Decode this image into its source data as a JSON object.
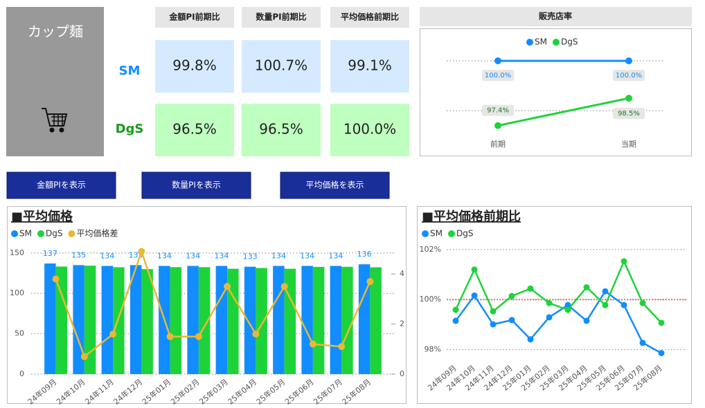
{
  "header": {
    "title": "カップ麺"
  },
  "kpi_table": {
    "columns": [
      "金額PI前期比",
      "数量PI前期比",
      "平均価格前期比"
    ],
    "rows": [
      {
        "label": "SM",
        "values": [
          "99.8%",
          "100.7%",
          "99.1%"
        ]
      },
      {
        "label": "DgS",
        "values": [
          "96.5%",
          "96.5%",
          "100.0%"
        ]
      }
    ]
  },
  "buttons": [
    "金額PIを表示",
    "数量PIを表示",
    "平均価格を表示"
  ],
  "chart_data": [
    {
      "type": "line",
      "title": "販売店率",
      "categories": [
        "前期",
        "当期"
      ],
      "series": [
        {
          "name": "SM",
          "color": "#118dff",
          "values": [
            100.0,
            100.0
          ],
          "value_labels": [
            "100.0%",
            "100.0%"
          ]
        },
        {
          "name": "DgS",
          "color": "#1ed33a",
          "values": [
            97.4,
            98.5
          ],
          "value_labels": [
            "97.4%",
            "98.5%"
          ]
        }
      ],
      "ylim": [
        97,
        100.5
      ],
      "gridlines": [
        98,
        100
      ],
      "legend": "top"
    },
    {
      "type": "combo",
      "title": "■平均価格",
      "categories": [
        "24年09月",
        "24年10月",
        "24年11月",
        "24年12月",
        "25年01月",
        "25年02月",
        "25年03月",
        "25年04月",
        "25年05月",
        "25年06月",
        "25年07月",
        "25年08月"
      ],
      "series": [
        {
          "name": "SM",
          "kind": "bar",
          "color": "#118dff",
          "data_labels": true,
          "values": [
            137,
            135,
            134,
            135,
            134,
            134,
            134,
            133,
            134,
            134,
            134,
            136
          ]
        },
        {
          "name": "DgS",
          "kind": "bar",
          "color": "#1ed33a",
          "values": [
            133.2,
            134.3,
            132.4,
            130.1,
            132.5,
            132.5,
            130.5,
            131.4,
            130.5,
            132.8,
            132.9,
            132.3
          ]
        },
        {
          "name": "平均価格差",
          "kind": "line",
          "axis": "y2",
          "color": "#e6b935",
          "values": [
            3.8,
            0.7,
            1.6,
            4.9,
            1.5,
            1.5,
            3.5,
            1.6,
            3.5,
            1.2,
            1.1,
            3.7
          ]
        }
      ],
      "ylim": [
        0,
        155
      ],
      "yticks": [
        0,
        50,
        100,
        150
      ],
      "y2lim": [
        0,
        5
      ],
      "y2ticks": [
        0,
        2,
        4
      ],
      "grid": true,
      "legend": "top-left"
    },
    {
      "type": "line",
      "title": "■平均価格前期比",
      "categories": [
        "24年09月",
        "24年10月",
        "24年11月",
        "24年12月",
        "25年01月",
        "25年02月",
        "25年03月",
        "25年04月",
        "25年05月",
        "25年06月",
        "25年07月",
        "25年08月"
      ],
      "series": [
        {
          "name": "SM",
          "color": "#118dff",
          "values": [
            99.15,
            100.16,
            99.01,
            99.18,
            98.41,
            99.29,
            99.78,
            99.15,
            100.33,
            99.78,
            98.27,
            97.86
          ]
        },
        {
          "name": "DgS",
          "color": "#1ed33a",
          "values": [
            99.59,
            101.2,
            99.53,
            100.14,
            100.44,
            99.86,
            99.59,
            100.49,
            99.78,
            101.53,
            99.86,
            99.07
          ]
        }
      ],
      "ylim": [
        97.6,
        102.3
      ],
      "yticks": [
        {
          "value": 98,
          "label": "98%"
        },
        {
          "value": 100,
          "label": "100%"
        },
        {
          "value": 102,
          "label": "102%"
        }
      ],
      "reference_line": {
        "value": 100,
        "color": "#e8706f"
      },
      "grid": true,
      "legend": "top-left"
    }
  ]
}
